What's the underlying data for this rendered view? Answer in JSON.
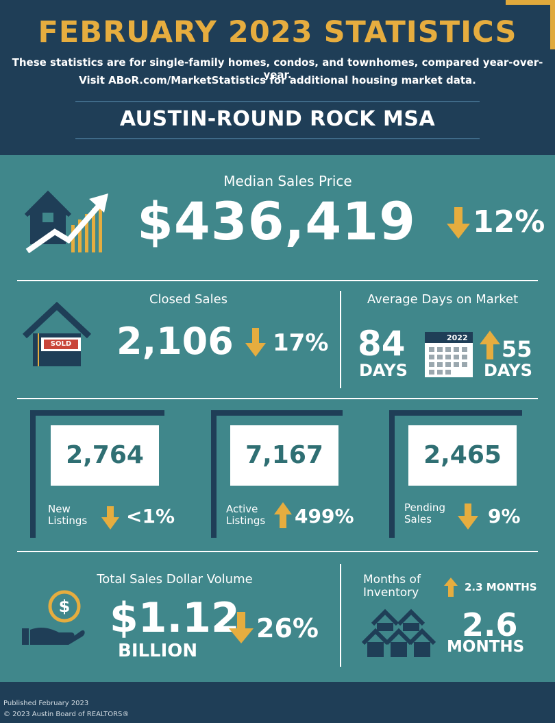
{
  "header": {
    "title": "FEBRUARY 2023 STATISTICS",
    "subtitle_1": "These statistics are for single-family homes, condos, and townhomes, compared year-over-year.",
    "subtitle_2": "Visit ABoR.com/MarketStatistics for additional housing market data.",
    "region": "AUSTIN-ROUND ROCK MSA"
  },
  "median_sales_price": {
    "label": "Median Sales Price",
    "value": "$436,419",
    "change": "12%",
    "direction": "down"
  },
  "closed_sales": {
    "label": "Closed Sales",
    "value": "2,106",
    "change": "17%",
    "direction": "down",
    "sign_text": "SOLD"
  },
  "average_days_on_market": {
    "label": "Average Days on Market",
    "value": "84",
    "unit": "DAYS",
    "calendar_year": "2022",
    "change": "55",
    "change_unit": "DAYS",
    "direction": "up"
  },
  "new_listings": {
    "value": "2,764",
    "label_1": "New",
    "label_2": "Listings",
    "change": "<1%",
    "direction": "down"
  },
  "active_listings": {
    "value": "7,167",
    "label_1": "Active",
    "label_2": "Listings",
    "change": "499%",
    "direction": "up"
  },
  "pending_sales": {
    "value": "2,465",
    "label_1": "Pending",
    "label_2": "Sales",
    "change": "9%",
    "direction": "down"
  },
  "total_sales_volume": {
    "label": "Total Sales Dollar Volume",
    "value": "$1.12",
    "unit": "BILLION",
    "change": "26%",
    "direction": "down",
    "coin_symbol": "$"
  },
  "months_of_inventory": {
    "label_1": "Months of",
    "label_2": "Inventory",
    "change": "2.3 MONTHS",
    "direction": "up",
    "value": "2.6",
    "unit": "MONTHS"
  },
  "footer": {
    "published": "Published February 2023",
    "copyright": "© 2023 Austin Board of REALTORS®"
  },
  "colors": {
    "navy": "#1f3e57",
    "teal": "#40878b",
    "gold": "#e6ad3f"
  }
}
